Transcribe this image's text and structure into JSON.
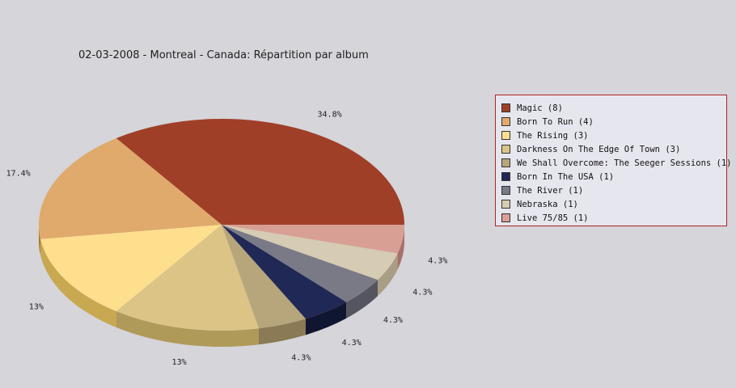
{
  "chart_data": {
    "type": "pie",
    "title": "02-03-2008 - Montreal - Canada:  Répartition par album",
    "legend_position": "right",
    "slices": [
      {
        "label": "Magic (8)",
        "value": 8,
        "pct_label": "34.8%",
        "color": "#a03f28",
        "side_color": "#7a1000"
      },
      {
        "label": "Born To Run (4)",
        "value": 4,
        "pct_label": "17.4%",
        "color": "#e0aa6c",
        "side_color": "#b07830"
      },
      {
        "label": "The Rising (3)",
        "value": 3,
        "pct_label": "13%",
        "color": "#fedf8e",
        "side_color": "#c8a850"
      },
      {
        "label": "Darkness On The Edge Of Town (3)",
        "value": 3,
        "pct_label": "13%",
        "color": "#dcc487",
        "side_color": "#b09a5a"
      },
      {
        "label": "We Shall Overcome: The Seeger Sessions (1)",
        "value": 1,
        "pct_label": "4.3%",
        "color": "#b7a57c",
        "side_color": "#8a7a55"
      },
      {
        "label": "Born In The USA (1)",
        "value": 1,
        "pct_label": "4.3%",
        "color": "#202855",
        "side_color": "#101530"
      },
      {
        "label": "The River (1)",
        "value": 1,
        "pct_label": "4.3%",
        "color": "#7a7a87",
        "side_color": "#55555f"
      },
      {
        "label": "Nebraska (1)",
        "value": 1,
        "pct_label": "4.3%",
        "color": "#d6cbb3",
        "side_color": "#a89d85"
      },
      {
        "label": "Live 75/85 (1)",
        "value": 1,
        "pct_label": "4.3%",
        "color": "#d89f95",
        "side_color": "#a8706a"
      }
    ]
  }
}
